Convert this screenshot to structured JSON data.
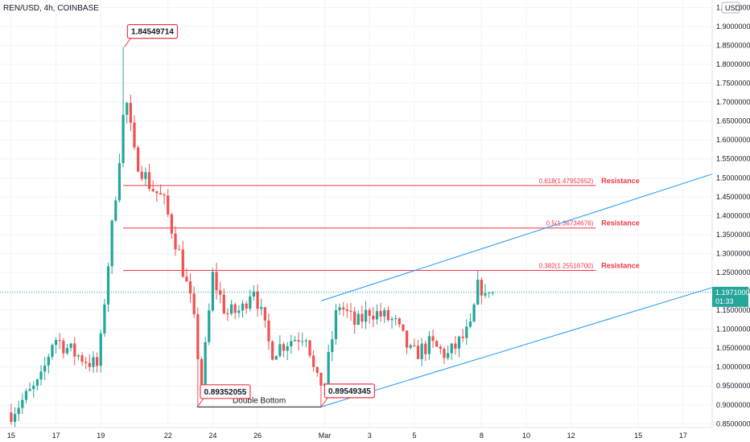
{
  "chart_data": {
    "type": "candlestick",
    "title": "REN/USD, 4h, COINBASE",
    "currency_label": "USD",
    "last_price": "1.19710000",
    "countdown": "01:33",
    "ylim": [
      0.84,
      1.97
    ],
    "y_ticks": [
      "1.95000000",
      "1.90000000",
      "1.85000000",
      "1.80000000",
      "1.75000000",
      "1.70000000",
      "1.65000000",
      "1.60000000",
      "1.55000000",
      "1.50000000",
      "1.45000000",
      "1.40000000",
      "1.35000000",
      "1.30000000",
      "1.25000000",
      "1.20000000",
      "1.15000000",
      "1.10000000",
      "1.05000000",
      "1.00000000",
      "0.95000000",
      "0.90000000",
      "0.85000000"
    ],
    "x_ticks": [
      {
        "label": "15",
        "day": 15
      },
      {
        "label": "17",
        "day": 17
      },
      {
        "label": "19",
        "day": 19
      },
      {
        "label": "22",
        "day": 22
      },
      {
        "label": "24",
        "day": 24
      },
      {
        "label": "26",
        "day": 26
      },
      {
        "label": "Mar",
        "day": 29
      },
      {
        "label": "3",
        "day": 31
      },
      {
        "label": "5",
        "day": 33
      },
      {
        "label": "8",
        "day": 36
      },
      {
        "label": "10",
        "day": 38
      },
      {
        "label": "12",
        "day": 40
      },
      {
        "label": "15",
        "day": 43
      },
      {
        "label": "17",
        "day": 45
      }
    ],
    "x_range_days": [
      14.5,
      46.3
    ],
    "anchors": [
      {
        "day": 15,
        "price": 0.88
      },
      {
        "day": 16.3,
        "price": 0.96
      },
      {
        "day": 16.9,
        "price": 1.08
      },
      {
        "day": 17.7,
        "price": 1.04
      },
      {
        "day": 18.9,
        "price": 1.0
      },
      {
        "day": 19.2,
        "price": 1.2
      },
      {
        "day": 19.7,
        "price": 1.48
      },
      {
        "day": 20.1,
        "price": 1.72
      },
      {
        "day": 20.5,
        "price": 1.56
      },
      {
        "day": 21.2,
        "price": 1.48
      },
      {
        "day": 21.8,
        "price": 1.44
      },
      {
        "day": 22.5,
        "price": 1.3
      },
      {
        "day": 23.1,
        "price": 1.15
      },
      {
        "day": 23.5,
        "price": 0.95
      },
      {
        "day": 24.0,
        "price": 1.24
      },
      {
        "day": 24.6,
        "price": 1.14
      },
      {
        "day": 25.3,
        "price": 1.15
      },
      {
        "day": 25.8,
        "price": 1.22
      },
      {
        "day": 26.6,
        "price": 1.04
      },
      {
        "day": 27.4,
        "price": 1.07
      },
      {
        "day": 28.2,
        "price": 1.09
      },
      {
        "day": 28.6,
        "price": 0.96
      },
      {
        "day": 29.0,
        "price": 0.96
      },
      {
        "day": 29.6,
        "price": 1.17
      },
      {
        "day": 30.4,
        "price": 1.11
      },
      {
        "day": 31.0,
        "price": 1.15
      },
      {
        "day": 32.1,
        "price": 1.12
      },
      {
        "day": 32.9,
        "price": 1.03
      },
      {
        "day": 33.7,
        "price": 1.06
      },
      {
        "day": 34.5,
        "price": 1.03
      },
      {
        "day": 35.5,
        "price": 1.1
      },
      {
        "day": 35.9,
        "price": 1.23
      },
      {
        "day": 36.2,
        "price": 1.17
      },
      {
        "day": 36.5,
        "price": 1.197
      }
    ],
    "fib_levels": [
      {
        "label": "0.618(1.47952652)",
        "price": 1.47952652,
        "note": "Resistance"
      },
      {
        "label": "0.5(1.36734676)",
        "price": 1.36734676,
        "note": "Resistance"
      },
      {
        "label": "0.382(1.25516700)",
        "price": 1.255167,
        "note": "Resistance"
      }
    ],
    "fib_start_day": 20.0,
    "fib_end_day": 41.1,
    "callouts": [
      {
        "text": "1.84549714",
        "day": 20.05,
        "price": 1.84549714
      },
      {
        "text": "0.89352055",
        "day": 23.3,
        "price": 0.89352055
      },
      {
        "text": "0.89549345",
        "day": 28.85,
        "price": 0.89549345
      }
    ],
    "double_bottom_label": "Double Bottom",
    "channel_upper": [
      {
        "day": 28.85,
        "price": 1.175
      },
      {
        "day": 46.3,
        "price": 1.51
      }
    ],
    "channel_lower": [
      {
        "day": 28.85,
        "price": 0.895
      },
      {
        "day": 46.3,
        "price": 1.21
      }
    ],
    "colors": {
      "up": "#26a69a",
      "down": "#ef5350",
      "fib": "#f23645",
      "channel": "#2196f3",
      "price_tag": "#26a69a",
      "grid": "#f0f3fa"
    }
  }
}
